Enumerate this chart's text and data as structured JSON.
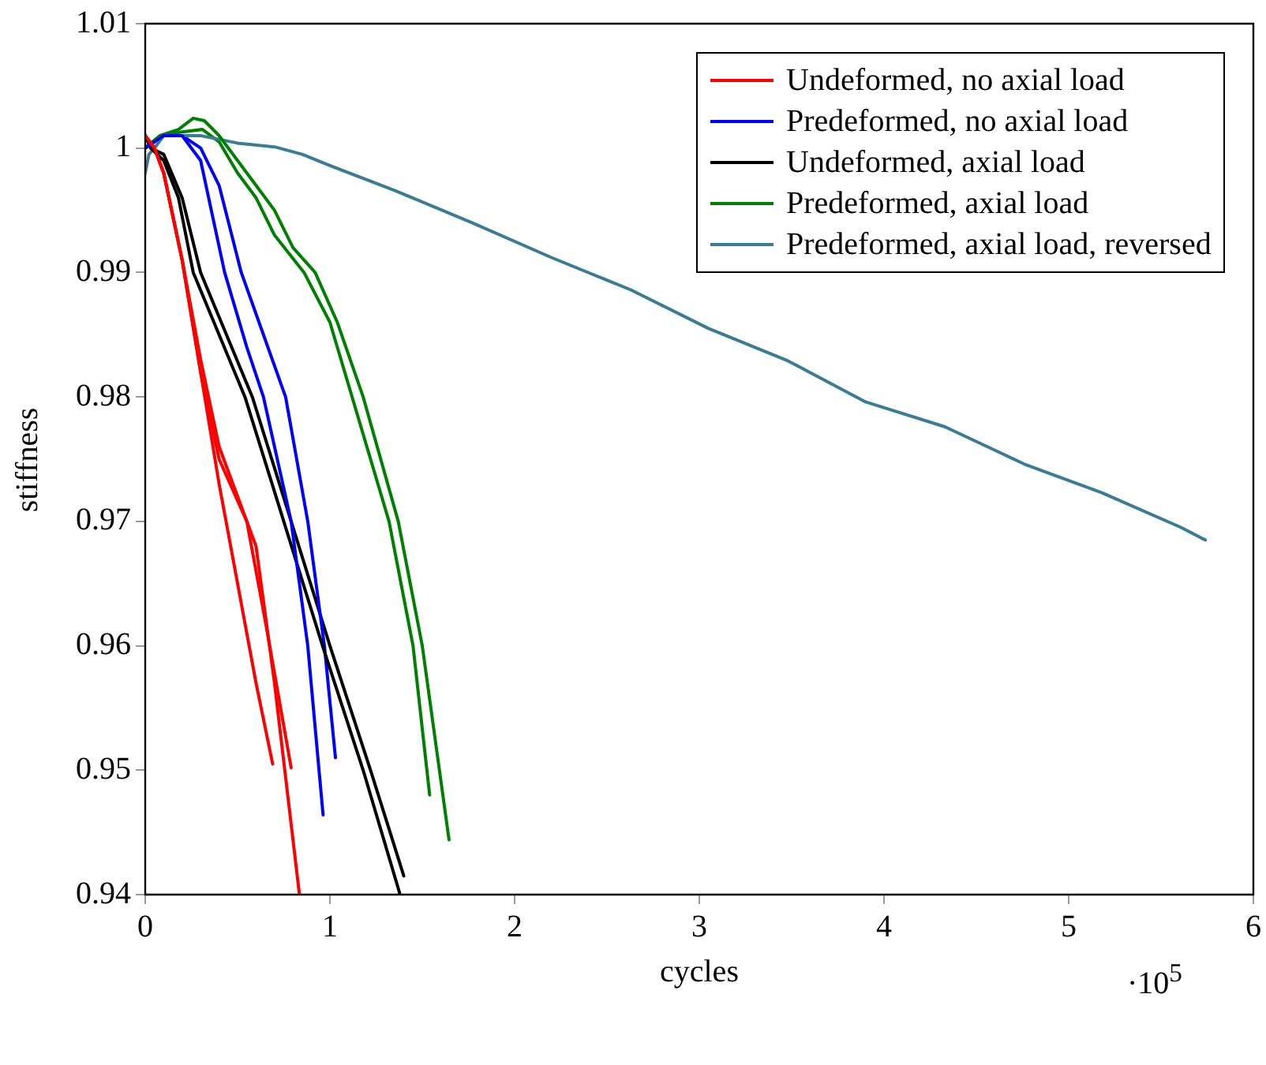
{
  "chart_data": {
    "type": "line",
    "xlabel": "cycles",
    "ylabel": "stiffness",
    "legend": "top right",
    "grid": false,
    "marker": "none",
    "line_style": "solid",
    "xlim": [
      0,
      6
    ],
    "xticks": [
      0,
      1,
      2,
      3,
      4,
      5,
      6
    ],
    "ylim": [
      0.94,
      1.01
    ],
    "yticks": [
      0.94,
      0.95,
      0.96,
      0.97,
      0.98,
      0.99,
      1,
      1.01
    ],
    "annotations": [
      "·10$^{5}$"
    ],
    "series": [
      {
        "name": "Undeformed, no axial load",
        "color": "#ff0000",
        "x": [
          0,
          0.05,
          0.1,
          0.2,
          0.3,
          0.4,
          0.5,
          0.6,
          0.69
        ],
        "values": [
          1.001,
          1.0,
          0.998,
          0.991,
          0.982,
          0.973,
          0.965,
          0.957,
          0.9505
        ]
      },
      {
        "name": "Predeformed, no axial load",
        "color": "#0000ff",
        "x": [
          0,
          0.1,
          0.2,
          0.3,
          0.43,
          0.55,
          0.64,
          0.79,
          0.88,
          0.963
        ],
        "values": [
          1.0,
          1.001,
          1.001,
          0.999,
          0.99,
          0.984,
          0.98,
          0.97,
          0.96,
          0.9464
        ]
      },
      {
        "name": "Undeformed, axial load",
        "color": "#000000",
        "x": [
          0,
          0.03,
          0.1,
          0.18,
          0.26,
          0.54,
          0.75,
          0.96,
          1.18,
          1.38
        ],
        "values": [
          1.001,
          1.0,
          0.999,
          0.996,
          0.99,
          0.98,
          0.97,
          0.96,
          0.95,
          0.94
        ]
      },
      {
        "name": "Predeformed, axial load",
        "color": "#008000",
        "x": [
          0,
          0.08,
          0.18,
          0.26,
          0.32,
          0.4,
          0.5,
          0.6,
          0.7,
          0.8,
          0.92,
          1.04,
          1.18,
          1.37,
          1.5,
          1.645
        ],
        "values": [
          1.0,
          1.001,
          1.0015,
          1.0024,
          1.0022,
          1.001,
          0.999,
          0.997,
          0.995,
          0.992,
          0.99,
          0.986,
          0.98,
          0.97,
          0.96,
          0.9444
        ]
      },
      {
        "name": "Predeformed, axial load, reversed",
        "color": "#3a7c96",
        "x": [
          0,
          0.02,
          0.05,
          0.1,
          0.3,
          0.5,
          0.7,
          0.85,
          1.0,
          1.35,
          1.77,
          2.2,
          2.63,
          3.05,
          3.48,
          3.9,
          4.33,
          4.76,
          5.18,
          5.61,
          5.74
        ],
        "values": [
          0.998,
          0.9995,
          1.0,
          1.001,
          1.001,
          1.0004,
          1.0001,
          0.9995,
          0.9986,
          0.9966,
          0.994,
          0.9912,
          0.9886,
          0.9855,
          0.9829,
          0.9796,
          0.9776,
          0.9746,
          0.9723,
          0.9695,
          0.9685
        ]
      },
      {
        "color": "#ff0000",
        "x": [
          0,
          0.05,
          0.1,
          0.2,
          0.3,
          0.4,
          0.55,
          0.65,
          0.79
        ],
        "values": [
          1.001,
          1.0,
          0.998,
          0.991,
          0.982,
          0.975,
          0.97,
          0.962,
          0.9502
        ]
      },
      {
        "color": "#ff0000",
        "x": [
          0,
          0.05,
          0.1,
          0.2,
          0.3,
          0.4,
          0.5,
          0.6,
          0.7,
          0.835
        ],
        "values": [
          1.001,
          1.0,
          0.998,
          0.991,
          0.983,
          0.976,
          0.972,
          0.968,
          0.957,
          0.94
        ]
      },
      {
        "color": "#0000ff",
        "x": [
          0,
          0.1,
          0.2,
          0.3,
          0.4,
          0.52,
          0.64,
          0.76,
          0.88,
          0.97,
          1.03
        ],
        "values": [
          1.0,
          1.001,
          1.001,
          1.0,
          0.997,
          0.99,
          0.985,
          0.98,
          0.97,
          0.96,
          0.951
        ]
      },
      {
        "color": "#000000",
        "x": [
          0,
          0.03,
          0.1,
          0.2,
          0.3,
          0.58,
          0.79,
          1.0,
          1.22,
          1.4
        ],
        "values": [
          1.001,
          1.0,
          0.9995,
          0.996,
          0.99,
          0.98,
          0.97,
          0.96,
          0.95,
          0.9415
        ]
      },
      {
        "color": "#008000",
        "x": [
          0,
          0.08,
          0.2,
          0.31,
          0.4,
          0.5,
          0.6,
          0.7,
          0.86,
          1.0,
          1.12,
          1.32,
          1.45,
          1.54
        ],
        "values": [
          1.0,
          1.001,
          1.0013,
          1.0015,
          1.0005,
          0.998,
          0.996,
          0.993,
          0.99,
          0.986,
          0.98,
          0.97,
          0.96,
          0.948
        ]
      }
    ]
  }
}
